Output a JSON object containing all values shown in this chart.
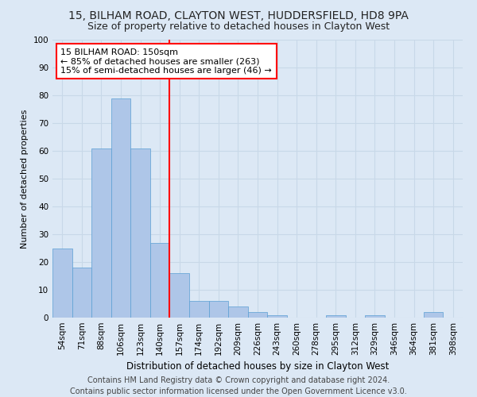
{
  "title_line1": "15, BILHAM ROAD, CLAYTON WEST, HUDDERSFIELD, HD8 9PA",
  "title_line2": "Size of property relative to detached houses in Clayton West",
  "xlabel": "Distribution of detached houses by size in Clayton West",
  "ylabel": "Number of detached properties",
  "categories": [
    "54sqm",
    "71sqm",
    "88sqm",
    "106sqm",
    "123sqm",
    "140sqm",
    "157sqm",
    "174sqm",
    "192sqm",
    "209sqm",
    "226sqm",
    "243sqm",
    "260sqm",
    "278sqm",
    "295sqm",
    "312sqm",
    "329sqm",
    "346sqm",
    "364sqm",
    "381sqm",
    "398sqm"
  ],
  "values": [
    25,
    18,
    61,
    79,
    61,
    27,
    16,
    6,
    6,
    4,
    2,
    1,
    0,
    0,
    1,
    0,
    1,
    0,
    0,
    2,
    0
  ],
  "bar_color": "#aec6e8",
  "bar_edge_color": "#5a9fd4",
  "grid_color": "#c8d8e8",
  "background_color": "#dce8f5",
  "annotation_text": "15 BILHAM ROAD: 150sqm\n← 85% of detached houses are smaller (263)\n15% of semi-detached houses are larger (46) →",
  "annotation_box_facecolor": "white",
  "annotation_box_edgecolor": "red",
  "red_line_x": 5.5,
  "ylim": [
    0,
    100
  ],
  "yticks": [
    0,
    10,
    20,
    30,
    40,
    50,
    60,
    70,
    80,
    90,
    100
  ],
  "footer_line1": "Contains HM Land Registry data © Crown copyright and database right 2024.",
  "footer_line2": "Contains public sector information licensed under the Open Government Licence v3.0.",
  "title_fontsize": 10,
  "subtitle_fontsize": 9,
  "xlabel_fontsize": 8.5,
  "ylabel_fontsize": 8,
  "tick_fontsize": 7.5,
  "annotation_fontsize": 8,
  "footer_fontsize": 7
}
